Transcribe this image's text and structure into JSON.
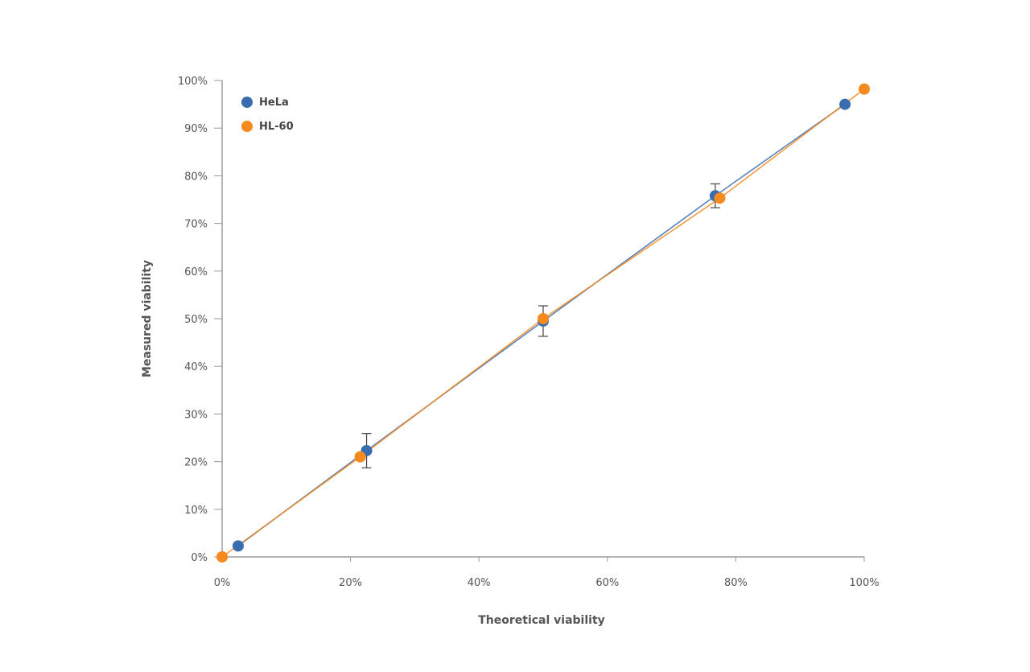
{
  "chart_data": {
    "type": "scatter",
    "xlabel": "Theoretical viability",
    "ylabel": "Measured viability",
    "xlim": [
      0,
      100
    ],
    "ylim": [
      0,
      100
    ],
    "x_ticks": [
      "0%",
      "20%",
      "40%",
      "60%",
      "80%",
      "100%"
    ],
    "y_ticks": [
      "0%",
      "10%",
      "20%",
      "30%",
      "40%",
      "50%",
      "60%",
      "70%",
      "80%",
      "90%",
      "100%"
    ],
    "legend_position": "top-left",
    "grid": false,
    "series": [
      {
        "name": "HeLa",
        "color": "#3a6cb0",
        "points": [
          {
            "x": 2.5,
            "y": 2.3,
            "err": 0
          },
          {
            "x": 22.5,
            "y": 22.3,
            "err": 3.6
          },
          {
            "x": 50.0,
            "y": 49.5,
            "err": 3.2
          },
          {
            "x": 76.8,
            "y": 75.8,
            "err": 2.5
          },
          {
            "x": 97.0,
            "y": 95.0,
            "err": 0
          }
        ]
      },
      {
        "name": "HL-60",
        "color": "#f58a1f",
        "points": [
          {
            "x": 0.0,
            "y": 0.0,
            "err": 0
          },
          {
            "x": 21.5,
            "y": 21.0,
            "err": 0
          },
          {
            "x": 50.0,
            "y": 50.0,
            "err": 0
          },
          {
            "x": 77.5,
            "y": 75.3,
            "err": 0
          },
          {
            "x": 100.0,
            "y": 98.2,
            "err": 0
          }
        ]
      }
    ]
  }
}
